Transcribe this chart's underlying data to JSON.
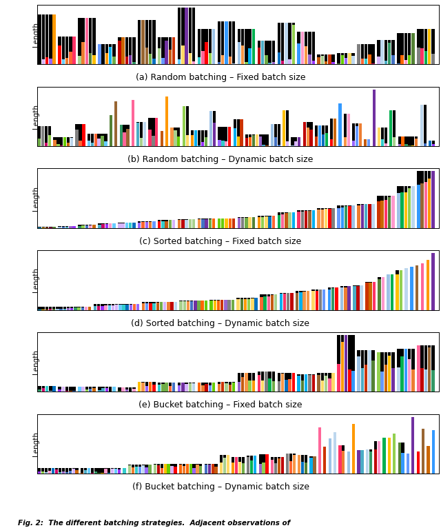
{
  "n_samples": 100,
  "colors": [
    "#4472C4",
    "#ED7D31",
    "#FF0000",
    "#7030A0",
    "#70AD47",
    "#000000",
    "#FFD966",
    "#9DC3E6",
    "#FF99CC",
    "#808080",
    "#C00000",
    "#BDD7EE",
    "#C55A11",
    "#548235",
    "#D6B4FC",
    "#A9D18E",
    "#D99694",
    "#8064A2",
    "#4BACC6",
    "#F79646",
    "#92D050",
    "#00B0F0",
    "#FF6600",
    "#996633",
    "#CC0066",
    "#0070C0",
    "#00B050",
    "#FF0000",
    "#7030A0",
    "#FFC000",
    "#00B0F0",
    "#FF6600",
    "#00CC44",
    "#9933FF",
    "#FF9900",
    "#3399FF",
    "#FF3366",
    "#66CC00",
    "#CC6600",
    "#9966CC"
  ],
  "captions": [
    "(a) Random batching – Fixed batch size",
    "(b) Random batching – Dynamic batch size",
    "(c) Sorted batching – Fixed batch size",
    "(d) Sorted batching – Dynamic batch size",
    "(e) Bucket batching – Fixed batch size",
    "(f) Bucket batching – Dynamic batch size"
  ],
  "ylabel": "Length",
  "fig_caption": "Fig. 2:  The different batching strategies.  Adjacent observations of",
  "background_color": "#FFFFFF",
  "subplot_bg": "#FFFFFF"
}
